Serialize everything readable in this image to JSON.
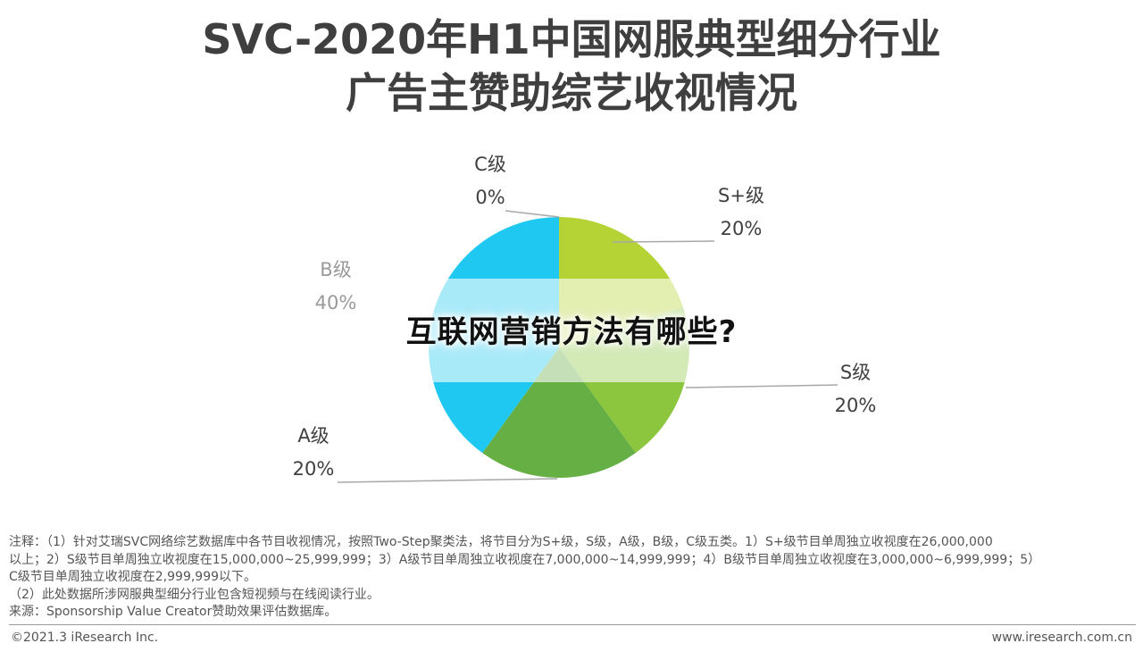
{
  "chart_data": {
    "type": "pie",
    "title": "SVC-2020年H1中国网服典型细分行业",
    "subtitle": "广告主赞助综艺收视情况",
    "slices": [
      {
        "name": "S+级",
        "value": 20,
        "label": "20%",
        "color": "#b5d334"
      },
      {
        "name": "S级",
        "value": 20,
        "label": "20%",
        "color": "#8cc63f"
      },
      {
        "name": "A级",
        "value": 20,
        "label": "20%",
        "color": "#66af44"
      },
      {
        "name": "B级",
        "value": 40,
        "label": "40%",
        "color": "#1ec8f0"
      },
      {
        "name": "C级",
        "value": 0,
        "label": "0%",
        "color": "#4e7fd8"
      }
    ]
  },
  "overlay": {
    "text": "互联网营销方法有哪些?"
  },
  "notes": {
    "line1": "注释：（1）针对艾瑞SVC网络综艺数据库中各节目收视情况，按照Two-Step聚类法，将节目分为S+级，S级，A级，B级，C级五类。1）S+级节目单周独立收视度在26,000,000",
    "line2": "以上；2）S级节目单周独立收视度在15,000,000~25,999,999；3）A级节目单周独立收视度在7,000,000~14,999,999；4）B级节目单周独立收视度在3,000,000~6,999,999；5）",
    "line3": "C级节目单周独立收视度在2,999,999以下。",
    "line4": "（2）此处数据所涉网服典型细分行业包含短视频与在线阅读行业。",
    "source": "来源：Sponsorship Value Creator赞助效果评估数据库。"
  },
  "footer": {
    "copyright": "©2021.3 iResearch Inc.",
    "website": "www.iresearch.com.cn"
  }
}
